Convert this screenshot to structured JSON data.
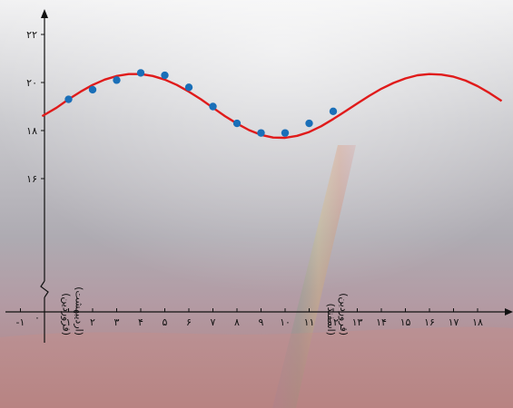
{
  "chart_data": {
    "type": "scatter",
    "title": "",
    "xlabel": "",
    "ylabel": "",
    "x_ticks": [
      "-۱",
      "۰",
      "۱",
      "۲",
      "۳",
      "۴",
      "۵",
      "۶",
      "۷",
      "۸",
      "۹",
      "۱۰",
      "۱۱",
      "۱۲",
      "۱۳",
      "۱۴",
      "۱۵",
      "۱۶",
      "۱۷",
      "۱۸"
    ],
    "y_ticks": [
      "۱۶",
      "۱۸",
      "۲۰",
      "۲۲"
    ],
    "xlim": [
      -1.2,
      19
    ],
    "ylim": [
      15.8,
      22.8
    ],
    "axis_break": true,
    "points": {
      "x": [
        1,
        2,
        3,
        4,
        5,
        6,
        7,
        8,
        9,
        10,
        11,
        12
      ],
      "y": [
        19.3,
        19.7,
        20.1,
        20.4,
        20.3,
        19.8,
        19.0,
        18.3,
        17.9,
        17.9,
        18.3,
        18.8
      ]
    },
    "curve": {
      "x": [
        -0.1,
        0.5,
        1,
        1.5,
        2,
        2.5,
        3,
        3.5,
        4,
        4.5,
        5,
        5.5,
        6,
        6.5,
        7,
        7.5,
        8,
        8.5,
        9,
        9.5,
        10,
        10.5,
        11,
        11.5,
        12,
        12.5,
        13,
        13.5,
        14,
        14.5,
        15,
        15.5,
        16,
        16.5,
        17,
        17.5,
        18,
        18.5,
        19
      ],
      "y": [
        18.6,
        18.95,
        19.3,
        19.62,
        19.9,
        20.12,
        20.27,
        20.35,
        20.35,
        20.27,
        20.12,
        19.9,
        19.62,
        19.3,
        18.95,
        18.6,
        18.29,
        18.02,
        17.82,
        17.71,
        17.7,
        17.78,
        17.94,
        18.18,
        18.48,
        18.8,
        19.13,
        19.45,
        19.74,
        19.98,
        20.17,
        20.3,
        20.35,
        20.33,
        20.24,
        20.08,
        19.85,
        19.56,
        19.23
      ]
    },
    "annotations": [
      {
        "x": 1,
        "lines": [
          "(فروردین)",
          "(اردیبهشت)"
        ]
      },
      {
        "x": 12,
        "lines": [
          "(اسفند)",
          "(فروردین)"
        ]
      }
    ],
    "grid": false,
    "colors": {
      "points": "#1a6fb8",
      "curve": "#e01b1b",
      "axis": "#111111"
    }
  }
}
